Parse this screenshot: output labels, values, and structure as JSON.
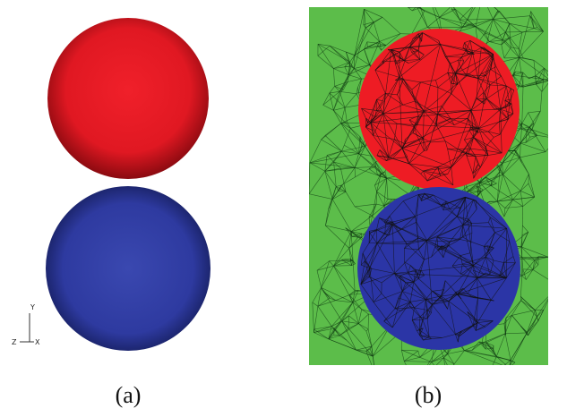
{
  "panels": [
    {
      "label": "(a)",
      "axes": {
        "y": "Y",
        "z": "Z",
        "x": "X"
      }
    },
    {
      "label": "(b)"
    }
  ]
}
